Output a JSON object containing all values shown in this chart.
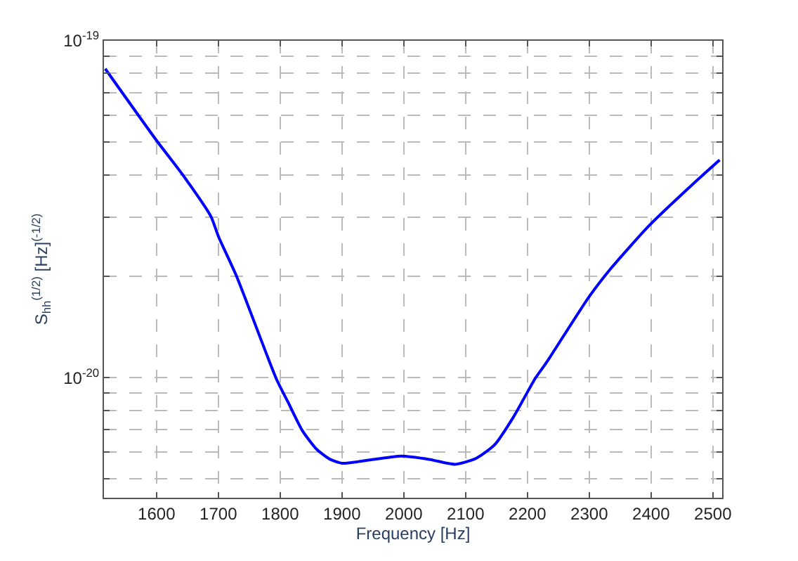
{
  "chart_data": {
    "type": "line",
    "xlabel": "Frequency [Hz]",
    "ylabel": "S$_{hh}$$^{(1/2)}$ [Hz]$^{(-1/2)}$",
    "log": "y",
    "grid": true,
    "line_style": "solid",
    "xlim": [
      1515,
      2515
    ],
    "xticks": [
      1600,
      1700,
      1800,
      1900,
      2000,
      2100,
      2200,
      2300,
      2400,
      2500
    ],
    "ylim": [
      4.4e-21,
      1e-19
    ],
    "yticks": [
      {
        "value": 5e-21,
        "label": null
      },
      {
        "value": 6e-21,
        "label": null
      },
      {
        "value": 7e-21,
        "label": null
      },
      {
        "value": 8e-21,
        "label": null
      },
      {
        "value": 9e-21,
        "label": null
      },
      {
        "value": 1e-20,
        "label": "10$^{-20}$"
      },
      {
        "value": 2e-20,
        "label": null
      },
      {
        "value": 3e-20,
        "label": null
      },
      {
        "value": 4e-20,
        "label": null
      },
      {
        "value": 5e-20,
        "label": null
      },
      {
        "value": 6e-20,
        "label": null
      },
      {
        "value": 7e-20,
        "label": null
      },
      {
        "value": 8e-20,
        "label": null
      },
      {
        "value": 9e-20,
        "label": null
      },
      {
        "value": 1e-19,
        "label": "10$^{-19}$"
      }
    ],
    "x": [
      1517,
      1600,
      1642,
      1688,
      1700,
      1730,
      1794,
      1813,
      1836,
      1859,
      1881,
      1900,
      1935,
      1996,
      2041,
      2083,
      2117,
      2147,
      2178,
      2212,
      2231,
      2299,
      2337,
      2398,
      2466,
      2511
    ],
    "series": [
      {
        "color": "#0000ff",
        "values": [
          8.26e-20,
          5.06e-20,
          4.01e-20,
          3.01e-20,
          2.63e-20,
          1.99e-20,
          9.9e-21,
          8.44e-21,
          6.96e-21,
          6.13e-21,
          5.72e-21,
          5.57e-21,
          5.66e-21,
          5.85e-21,
          5.72e-21,
          5.53e-21,
          5.76e-21,
          6.32e-21,
          7.67e-21,
          9.9e-21,
          1.11e-20,
          1.73e-20,
          2.13e-20,
          2.84e-20,
          3.73e-20,
          4.43e-20
        ]
      }
    ]
  }
}
